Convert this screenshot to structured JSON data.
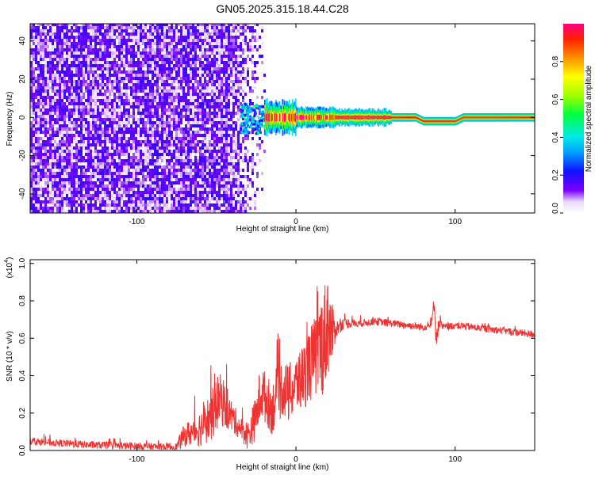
{
  "title": "GN05.2025.315.18.44.C28",
  "chart_data": [
    {
      "type": "heatmap",
      "xlabel": "Height of straight line (km)",
      "ylabel": "Frequency (Hz)",
      "xlim": [
        -167,
        150
      ],
      "ylim": [
        -50,
        49
      ],
      "xticks": [
        "-100",
        "0",
        "100"
      ],
      "yticks": [
        "-40",
        "-20",
        "0",
        "20",
        "40"
      ],
      "colorbar": {
        "label": "Normalized spectral amplitude",
        "ticks": [
          "0.0",
          "0.2",
          "0.4",
          "0.6",
          "0.8"
        ],
        "range": [
          0,
          1
        ]
      },
      "regions": [
        {
          "name": "broadband noise",
          "x_from": -167,
          "x_to": -28,
          "level": 0.12
        },
        {
          "name": "onset",
          "x_from": -35,
          "x_to": -20,
          "level": 0.3
        },
        {
          "name": "narrow band centered at 0 Hz",
          "x_from": -20,
          "x_to": 150,
          "level": 0.95
        }
      ]
    },
    {
      "type": "line",
      "xlabel": "Height of straight line (km)",
      "ylabel": "SNR (10 * v/v)",
      "multiplier": "(x10",
      "multiplier_exp": "4",
      "multiplier_close": ")",
      "xlim": [
        -167,
        150
      ],
      "ylim": [
        0,
        1.02
      ],
      "xticks": [
        "-100",
        "0",
        "100"
      ],
      "yticks": [
        "0.0",
        "0.2",
        "0.4",
        "0.6",
        "0.8",
        "1.0"
      ],
      "series": [
        {
          "color": "#ee3333",
          "x": [
            -167,
            -150,
            -130,
            -110,
            -90,
            -75,
            -72,
            -70,
            -60,
            -52,
            -48,
            -42,
            -35,
            -30,
            -25,
            -22,
            -19,
            -15,
            -12,
            -8,
            -5,
            0,
            5,
            8,
            12,
            15,
            18,
            20,
            22,
            25,
            30,
            40,
            50,
            60,
            70,
            80,
            85,
            87,
            88,
            90,
            92,
            95,
            100,
            110,
            120,
            130,
            140,
            150
          ],
          "y": [
            0.05,
            0.04,
            0.03,
            0.025,
            0.02,
            0.02,
            0.06,
            0.08,
            0.12,
            0.2,
            0.28,
            0.2,
            0.12,
            0.08,
            0.18,
            0.32,
            0.28,
            0.22,
            0.3,
            0.34,
            0.3,
            0.35,
            0.4,
            0.45,
            0.5,
            0.55,
            0.6,
            0.7,
            0.62,
            0.65,
            0.68,
            0.68,
            0.69,
            0.68,
            0.67,
            0.66,
            0.67,
            0.8,
            0.6,
            0.68,
            0.66,
            0.66,
            0.67,
            0.66,
            0.65,
            0.64,
            0.63,
            0.62
          ],
          "noise": [
            0.02,
            0.02,
            0.02,
            0.02,
            0.02,
            0.02,
            0.05,
            0.06,
            0.1,
            0.14,
            0.14,
            0.1,
            0.06,
            0.08,
            0.12,
            0.16,
            0.14,
            0.14,
            0.16,
            0.16,
            0.16,
            0.16,
            0.18,
            0.2,
            0.22,
            0.26,
            0.3,
            0.3,
            0.2,
            0.05,
            0.03,
            0.02,
            0.02,
            0.02,
            0.02,
            0.02,
            0.02,
            0.05,
            0.06,
            0.03,
            0.02,
            0.02,
            0.02,
            0.02,
            0.02,
            0.02,
            0.02,
            0.02
          ]
        }
      ]
    }
  ]
}
